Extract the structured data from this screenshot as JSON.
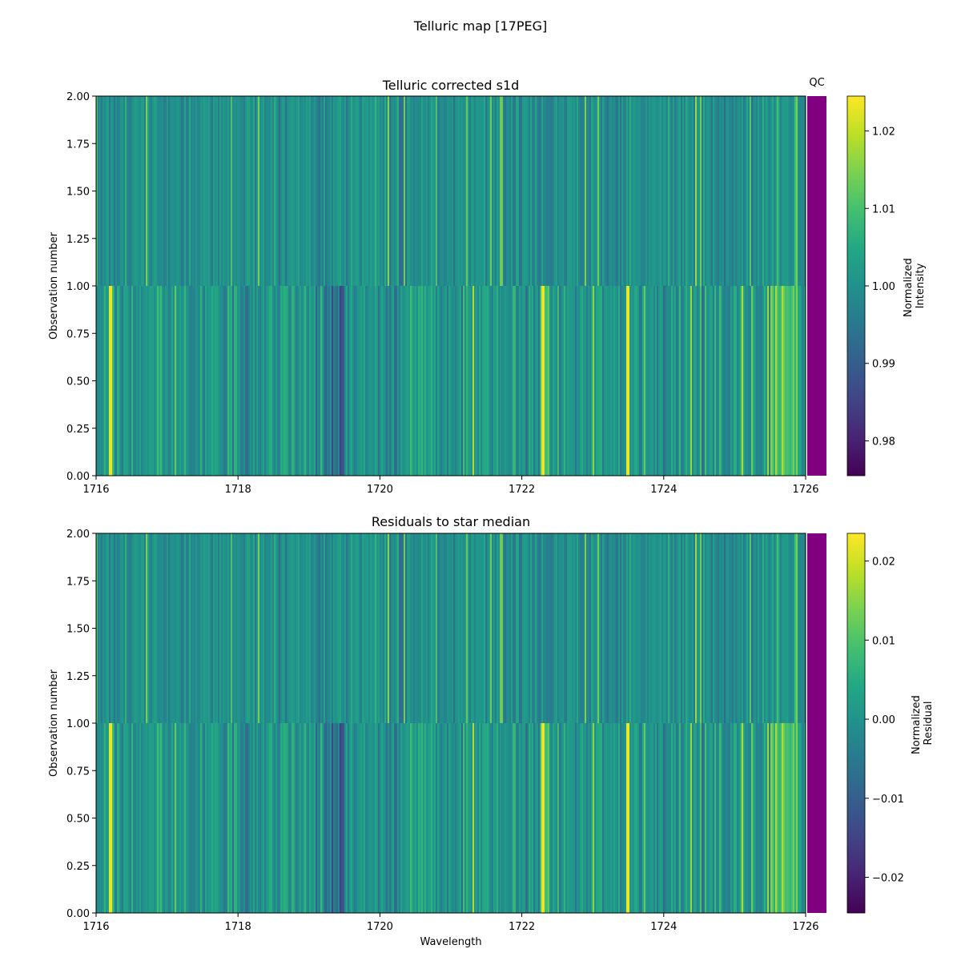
{
  "figure": {
    "title": "Telluric map [17PEG]"
  },
  "qc_label": "QC",
  "qc_color": "#800080",
  "colormap": "viridis",
  "chart_data": [
    {
      "type": "heatmap",
      "title": "Telluric corrected s1d",
      "xlabel": "",
      "ylabel": "Observation number",
      "xlim": [
        1716,
        1726
      ],
      "ylim": [
        0,
        2
      ],
      "x_ticks": [
        "1716",
        "1718",
        "1720",
        "1722",
        "1724",
        "1726"
      ],
      "y_ticks": [
        "0.00",
        "0.25",
        "0.50",
        "0.75",
        "1.00",
        "1.25",
        "1.50",
        "1.75",
        "2.00"
      ],
      "rows": [
        {
          "y_range": [
            0,
            1
          ],
          "description": "observation 0"
        },
        {
          "y_range": [
            1,
            2
          ],
          "description": "observation 1"
        }
      ],
      "notable_features": {
        "bright_lines_x": [
          1716.2,
          1722.3,
          1723.5
        ],
        "dark_region_x": [
          1719.1,
          1719.5
        ],
        "bright_band_x": [
          1725.5,
          1725.9
        ]
      },
      "colorbar": {
        "label_lines": [
          "Normalized",
          "Intensity"
        ],
        "range": [
          0.9755,
          1.0245
        ],
        "ticks": [
          "0.98",
          "0.99",
          "1.00",
          "1.01",
          "1.02"
        ]
      }
    },
    {
      "type": "heatmap",
      "title": "Residuals to star median",
      "xlabel": "Wavelength",
      "ylabel": "Observation number",
      "xlim": [
        1716,
        1726
      ],
      "ylim": [
        0,
        2
      ],
      "x_ticks": [
        "1716",
        "1718",
        "1720",
        "1722",
        "1724",
        "1726"
      ],
      "y_ticks": [
        "0.00",
        "0.25",
        "0.50",
        "0.75",
        "1.00",
        "1.25",
        "1.50",
        "1.75",
        "2.00"
      ],
      "rows": [
        {
          "y_range": [
            0,
            1
          ],
          "description": "observation 0"
        },
        {
          "y_range": [
            1,
            2
          ],
          "description": "observation 1"
        }
      ],
      "colorbar": {
        "label_lines": [
          "Normalized",
          "Residual"
        ],
        "range": [
          -0.0245,
          0.0235
        ],
        "ticks": [
          "−0.02",
          "−0.01",
          "0.00",
          "0.01",
          "0.02"
        ]
      }
    }
  ]
}
